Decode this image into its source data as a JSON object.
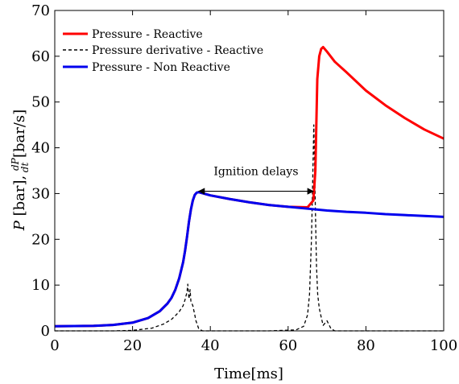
{
  "chart_data": {
    "type": "line",
    "xlabel": "Time[ms]",
    "ylabel": {
      "p1": "P",
      "p2": " [bar], ",
      "frac_num": "dP",
      "frac_den": "dt",
      "p3": " [bar/s]"
    },
    "xlim": [
      0,
      100
    ],
    "ylim": [
      0,
      70
    ],
    "xticks": [
      "0",
      "20",
      "40",
      "60",
      "80",
      "100"
    ],
    "yticks": [
      "0",
      "10",
      "20",
      "30",
      "40",
      "50",
      "60",
      "70"
    ],
    "grid": false,
    "legend_position": "top-left",
    "annotation": {
      "text": "Ignition delays",
      "from_x": 37,
      "to_x": 66.5,
      "y": 30.5
    },
    "series": [
      {
        "name": "Pressure - Reactive",
        "color": "#ff0000",
        "style": "solid",
        "x": [
          0,
          10,
          15,
          20,
          24,
          27,
          29,
          30,
          31,
          32,
          33,
          33.5,
          34,
          34.5,
          35,
          35.5,
          36,
          36.5,
          37,
          40,
          45,
          50,
          55,
          60,
          65,
          66.5,
          67,
          67.5,
          68,
          68.5,
          69,
          70,
          72,
          75,
          80,
          85,
          90,
          95,
          100
        ],
        "y": [
          1,
          1.1,
          1.3,
          1.8,
          2.8,
          4.3,
          6,
          7.2,
          9,
          11.5,
          15,
          17.5,
          20.5,
          23.8,
          26.5,
          28.5,
          29.7,
          30.2,
          30.3,
          29.6,
          28.8,
          28.1,
          27.5,
          27.1,
          27,
          28.5,
          35,
          55,
          60,
          61.6,
          62,
          61,
          58.8,
          56.5,
          52.5,
          49.3,
          46.5,
          44,
          42
        ]
      },
      {
        "name": "Pressure derivative - Reactive",
        "color": "#000000",
        "style": "dashed",
        "x": [
          0,
          15,
          20,
          25,
          28,
          30,
          31,
          32,
          33,
          33.5,
          34,
          34.2,
          34.5,
          34.8,
          35,
          35.5,
          36,
          36.3,
          36.6,
          37,
          38,
          40,
          55,
          62,
          64,
          65,
          65.5,
          66,
          66.3,
          66.6,
          67,
          67.3,
          67.6,
          68,
          68.5,
          69,
          70,
          71,
          72,
          100
        ],
        "y": [
          0,
          0,
          0.1,
          0.6,
          1.5,
          2.5,
          3.3,
          4.2,
          5.5,
          6.8,
          8.5,
          10.2,
          7,
          9,
          6.5,
          5.5,
          3.5,
          2.2,
          1.5,
          0.5,
          0,
          0,
          0,
          0.2,
          1,
          3.5,
          8,
          20,
          32,
          45,
          27,
          14,
          8,
          5,
          3,
          1.2,
          2.2,
          0.5,
          0,
          0
        ]
      },
      {
        "name": "Pressure - Non Reactive",
        "color": "#0000ee",
        "style": "solid",
        "x": [
          0,
          10,
          15,
          20,
          24,
          27,
          29,
          30,
          31,
          32,
          33,
          33.5,
          34,
          34.5,
          35,
          35.5,
          36,
          36.5,
          37,
          40,
          45,
          50,
          55,
          60,
          65,
          70,
          75,
          80,
          85,
          90,
          95,
          100
        ],
        "y": [
          1,
          1.1,
          1.3,
          1.8,
          2.8,
          4.3,
          6,
          7.2,
          9,
          11.5,
          15,
          17.5,
          20.5,
          23.8,
          26.5,
          28.5,
          29.7,
          30.2,
          30.3,
          29.6,
          28.8,
          28.1,
          27.5,
          27.1,
          26.7,
          26.3,
          26,
          25.8,
          25.5,
          25.3,
          25.1,
          24.9
        ]
      }
    ]
  }
}
